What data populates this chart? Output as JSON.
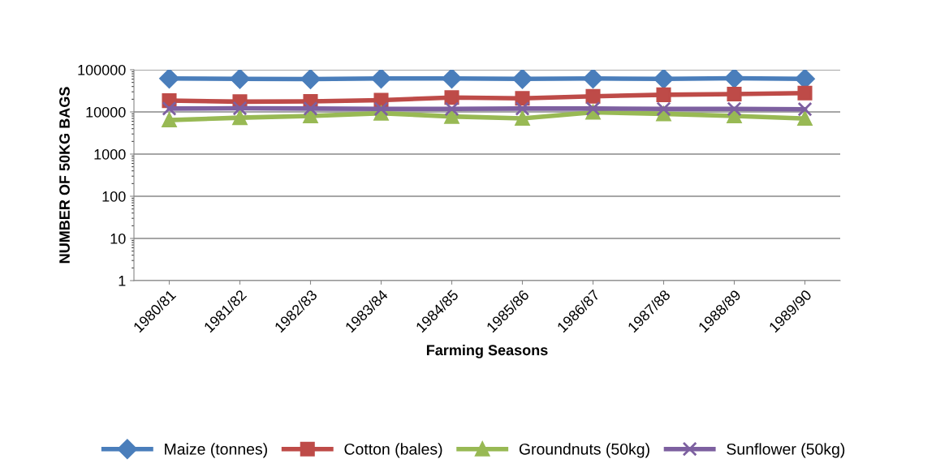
{
  "chart_data": {
    "type": "line",
    "xlabel": "Farming Seasons",
    "ylabel": "NUMBER OF 50KG BAGS",
    "categories": [
      "1980/81",
      "1981/82",
      "1982/83",
      "1983/84",
      "1984/85",
      "1985/86",
      "1986/87",
      "1987/88",
      "1988/89",
      "1989/90"
    ],
    "series": [
      {
        "name": "Maize (tonnes)",
        "color": "#4a7ebb",
        "marker": "diamond",
        "values": [
          62000,
          61000,
          60000,
          62000,
          62000,
          61000,
          62000,
          61000,
          63000,
          61000
        ]
      },
      {
        "name": "Cotton (bales)",
        "color": "#be4b48",
        "marker": "square",
        "values": [
          18500,
          17500,
          17800,
          19000,
          22000,
          21000,
          23500,
          25500,
          26500,
          28000
        ]
      },
      {
        "name": "Groundnuts (50kg)",
        "color": "#98b954",
        "marker": "triangle",
        "values": [
          6400,
          7300,
          8000,
          9300,
          7800,
          7000,
          9800,
          9000,
          8000,
          7000
        ]
      },
      {
        "name": "Sunflower (50kg)",
        "color": "#7d60a0",
        "marker": "cross",
        "values": [
          12000,
          12200,
          12000,
          11800,
          11800,
          12000,
          12000,
          11800,
          11800,
          11600
        ]
      }
    ],
    "log": "y",
    "ylim": [
      1,
      100000
    ],
    "yticks": [
      1,
      10,
      100,
      1000,
      10000,
      100000
    ],
    "grid": "y",
    "legend": "bottom",
    "line_style": "solid"
  }
}
